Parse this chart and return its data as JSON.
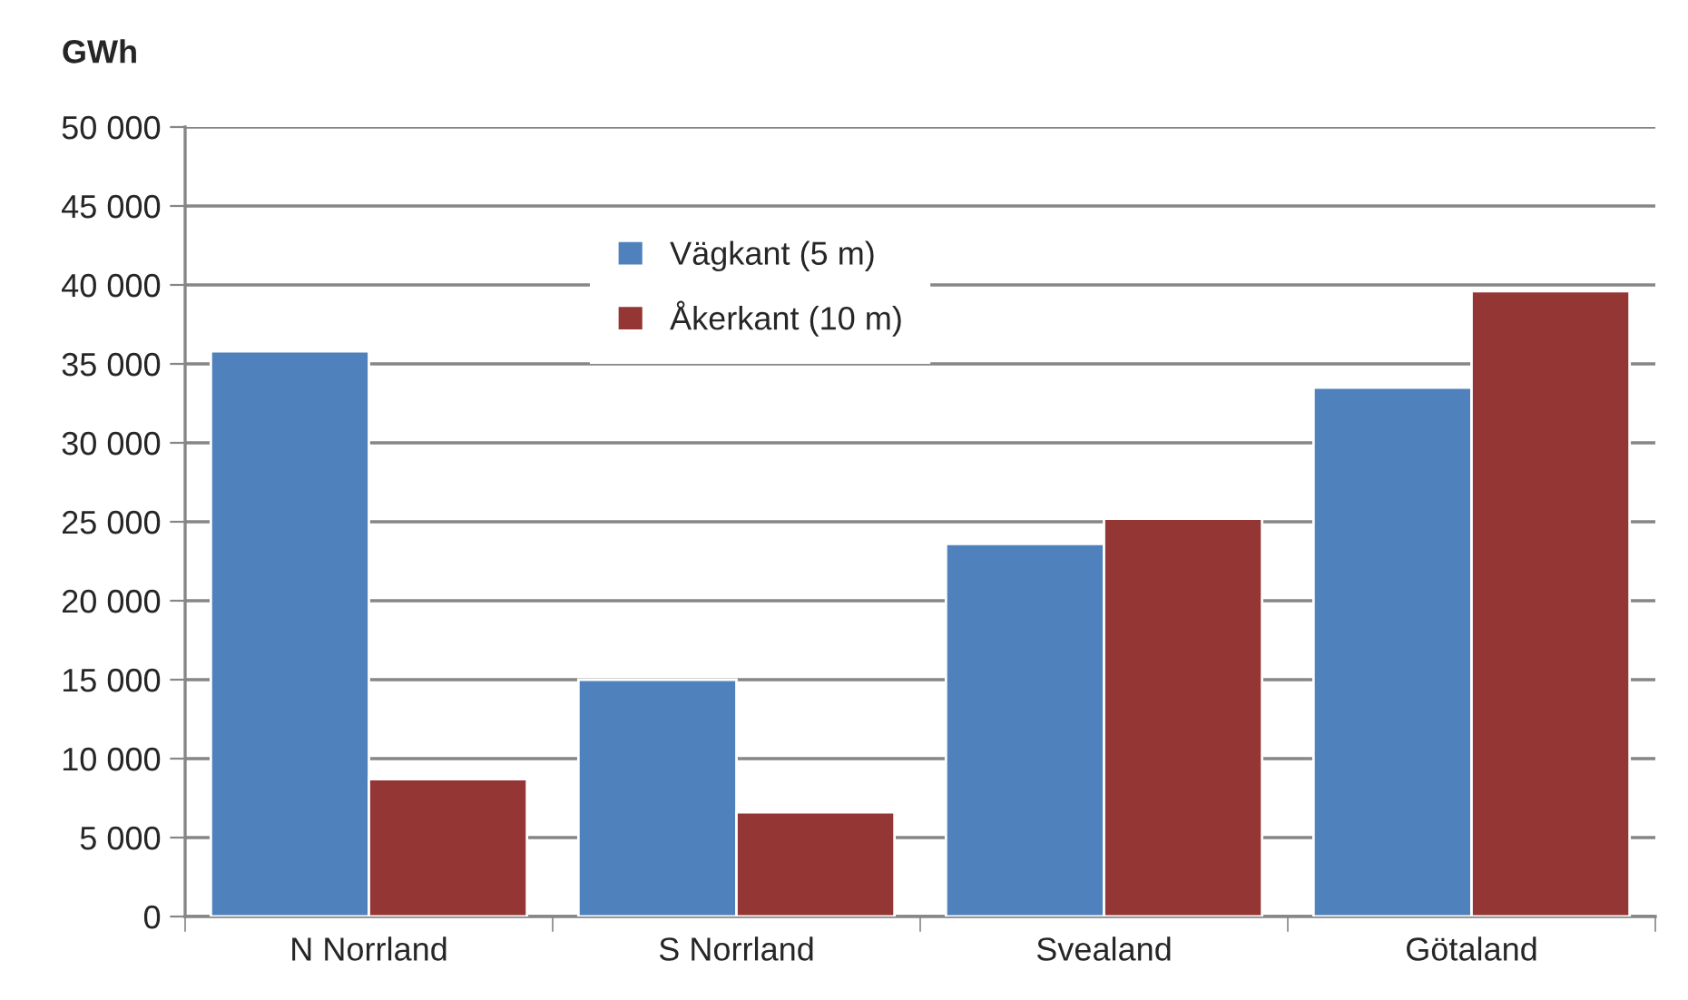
{
  "chart_data": {
    "type": "bar",
    "ylabel": "GWh",
    "categories": [
      "N Norrland",
      "S Norrland",
      "Svealand",
      "Götaland"
    ],
    "series": [
      {
        "name": "Vägkant (5 m)",
        "color": "#4f81bd",
        "values": [
          35800,
          15000,
          23600,
          33500
        ]
      },
      {
        "name": "Åkerkant (10 m)",
        "color": "#943634",
        "values": [
          8700,
          6600,
          25200,
          39600
        ]
      }
    ],
    "ylim": [
      0,
      50000
    ],
    "yticks": [
      0,
      {
        "value": 5000,
        "label": "5 000"
      },
      {
        "value": 10000,
        "label": "10 000"
      },
      {
        "value": 15000,
        "label": "15 000"
      },
      {
        "value": 20000,
        "label": "20 000"
      },
      {
        "value": 25000,
        "label": "25 000"
      },
      {
        "value": 30000,
        "label": "30 000"
      },
      {
        "value": 35000,
        "label": "35 000"
      },
      {
        "value": 40000,
        "label": "40 000"
      },
      {
        "value": 45000,
        "label": "45 000"
      },
      {
        "value": 50000,
        "label": "50 000"
      }
    ],
    "grid": "y",
    "legend": "top"
  }
}
